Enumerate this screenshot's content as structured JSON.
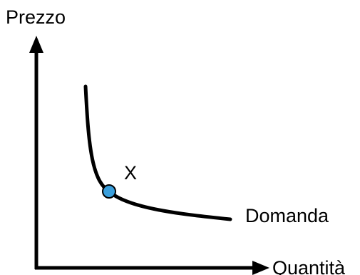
{
  "diagram": {
    "y_axis_label": "Prezzo",
    "x_axis_label": "Quantità",
    "curve_label": "Domanda",
    "point_label": "X",
    "colors": {
      "ink": "#000000",
      "point_fill": "#3a9fdc",
      "point_stroke": "#000000",
      "background": "#ffffff"
    }
  }
}
